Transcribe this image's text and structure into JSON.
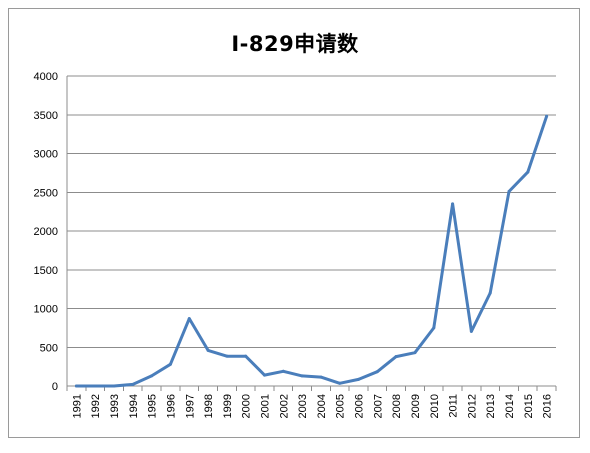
{
  "chart_data": {
    "type": "line",
    "title": "I-829申请数",
    "xlabel": "",
    "ylabel": "",
    "categories": [
      "1991",
      "1992",
      "1993",
      "1994",
      "1995",
      "1996",
      "1997",
      "1998",
      "1999",
      "2000",
      "2001",
      "2002",
      "2003",
      "2004",
      "2005",
      "2006",
      "2007",
      "2008",
      "2009",
      "2010",
      "2011",
      "2012",
      "2013",
      "2014",
      "2015",
      "2016"
    ],
    "series": [
      {
        "values": [
          0,
          0,
          0,
          20,
          130,
          280,
          870,
          460,
          385,
          385,
          140,
          190,
          130,
          115,
          35,
          85,
          185,
          380,
          430,
          750,
          2350,
          705,
          1200,
          2510,
          2760,
          3480
        ]
      }
    ],
    "ylim": [
      0,
      4000
    ],
    "yticks": [
      "0",
      "500",
      "1000",
      "1500",
      "2000",
      "2500",
      "3000",
      "3500",
      "4000"
    ],
    "grid": true,
    "legend": "none",
    "colors": {
      "line": "#4a7ebb",
      "grid": "#8c8c8c",
      "axis": "#8c8c8c"
    }
  }
}
